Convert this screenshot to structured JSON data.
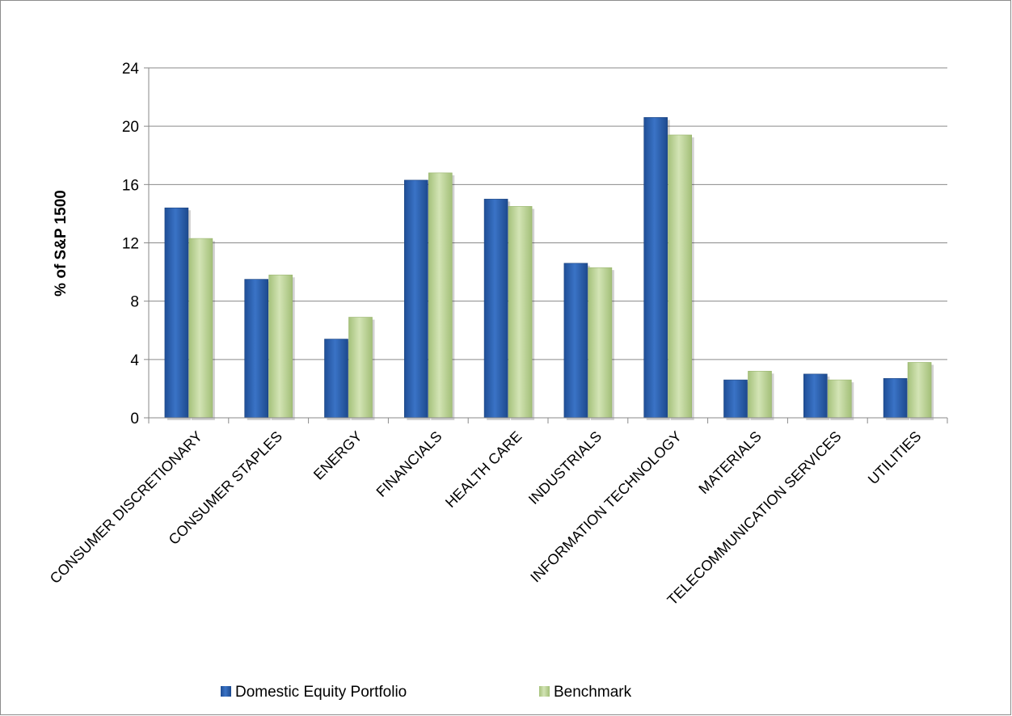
{
  "chart_data": {
    "type": "bar",
    "ylabel": "% of S&P 1500",
    "xlabel": "",
    "ylim": [
      0,
      24
    ],
    "yticks": [
      0,
      4,
      8,
      12,
      16,
      20,
      24
    ],
    "grid": true,
    "legend_position": "bottom",
    "categories": [
      "CONSUMER DISCRETIONARY",
      "CONSUMER STAPLES",
      "ENERGY",
      "FINANCIALS",
      "HEALTH CARE",
      "INDUSTRIALS",
      "INFORMATION TECHNOLOGY",
      "MATERIALS",
      "TELECOMMUNICATION SERVICES",
      "UTILITIES"
    ],
    "series": [
      {
        "name": "Domestic Equity Portfolio",
        "color": "#2e64b4",
        "values": [
          14.4,
          9.5,
          5.4,
          16.3,
          15.0,
          10.6,
          20.6,
          2.6,
          3.0,
          2.7
        ]
      },
      {
        "name": "Benchmark",
        "color": "#bfd59a",
        "values": [
          12.3,
          9.8,
          6.9,
          16.8,
          14.5,
          10.3,
          19.4,
          3.2,
          2.6,
          3.8
        ]
      }
    ]
  }
}
